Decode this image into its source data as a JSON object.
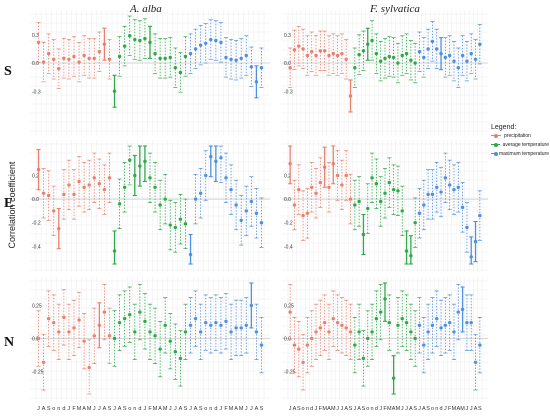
{
  "figure": {
    "col_titles": [
      "A. alba",
      "F. sylvatica"
    ],
    "row_labels": [
      "S",
      "E",
      "N"
    ],
    "ylabel": "Correlation coefficient",
    "legend": {
      "title": "Legend:",
      "items": [
        {
          "label": "precipitation",
          "color": "#E8806F"
        },
        {
          "label": "average temperature",
          "color": "#2EA84A"
        },
        {
          "label": "maximum temperature",
          "color": "#4F8FE0"
        }
      ]
    }
  },
  "chart_data": {
    "type": "scatter",
    "style": "dot-and-whisker",
    "months": [
      "J",
      "A",
      "S",
      "o",
      "n",
      "d",
      "J",
      "F",
      "M",
      "A",
      "M",
      "J",
      "J",
      "A",
      "S"
    ],
    "groups": [
      {
        "key": "precip",
        "name": "precipitation",
        "color": "#E8806F"
      },
      {
        "key": "avgT",
        "name": "average temperature",
        "color": "#2EA84A"
      },
      {
        "key": "maxT",
        "name": "maximum temperature",
        "color": "#4F8FE0"
      }
    ],
    "panels": [
      {
        "row": "S",
        "species": "A. alba",
        "yticks": [
          0.3,
          0.0,
          -0.3
        ],
        "ylim": [
          -0.68,
          0.5
        ],
        "precip": [
          0.22,
          0.01,
          0.1,
          0.04,
          -0.06,
          0.05,
          0.04,
          0.07,
          0.01,
          0.08,
          0.05,
          0.05,
          0.12,
          0.2,
          0.04
        ],
        "avgT": [
          -0.3,
          0.07,
          0.18,
          0.29,
          0.25,
          0.24,
          0.26,
          0.22,
          0.1,
          0.05,
          0.05,
          0.06,
          -0.05,
          -0.1,
          0.07
        ],
        "maxT": [
          0.1,
          0.15,
          0.19,
          0.21,
          0.25,
          0.24,
          0.22,
          0.06,
          0.04,
          0.03,
          0.05,
          0.08,
          -0.04,
          -0.2,
          -0.05
        ],
        "sig": {
          "precip": [
            13
          ],
          "avgT": [
            0,
            7
          ],
          "maxT": [
            13
          ]
        }
      },
      {
        "row": "S",
        "species": "F. sylvatica",
        "yticks": [
          0.3,
          0.0,
          -0.3
        ],
        "ylim": [
          -0.68,
          0.5
        ],
        "precip": [
          -0.05,
          0.14,
          0.18,
          0.15,
          0.08,
          0.12,
          0.08,
          0.13,
          0.13,
          0.08,
          0.1,
          0.08,
          0.1,
          0.04,
          -0.35
        ],
        "avgT": [
          -0.05,
          0.09,
          0.13,
          0.2,
          0.24,
          0.1,
          0.02,
          0.05,
          0.07,
          0.06,
          0.0,
          0.08,
          0.1,
          0.03,
          0.0
        ],
        "maxT": [
          0.12,
          0.06,
          0.15,
          0.23,
          0.15,
          0.1,
          0.06,
          0.08,
          0.02,
          -0.05,
          0.08,
          0.02,
          0.1,
          0.04,
          0.2
        ],
        "sig": {
          "precip": [
            14
          ],
          "avgT": [
            3
          ],
          "maxT": [
            5
          ]
        }
      },
      {
        "row": "E",
        "species": "A. alba",
        "yticks": [
          0.2,
          0.0,
          -0.2,
          -0.4
        ],
        "ylim": [
          -0.55,
          0.45
        ],
        "precip": [
          0.25,
          0.05,
          0.03,
          -0.1,
          -0.25,
          0.04,
          0.12,
          0.04,
          0.15,
          0.1,
          0.12,
          0.18,
          0.13,
          0.08,
          0.18
        ],
        "avgT": [
          -0.44,
          -0.04,
          0.1,
          0.33,
          0.2,
          0.28,
          0.32,
          0.18,
          0.1,
          -0.05,
          0.0,
          -0.22,
          -0.24,
          -0.17,
          -0.21
        ],
        "maxT": [
          -0.47,
          0.0,
          0.05,
          0.2,
          0.36,
          0.32,
          0.35,
          0.18,
          0.08,
          -0.05,
          -0.18,
          -0.1,
          -0.02,
          -0.12,
          -0.2
        ],
        "sig": {
          "precip": [
            0,
            4
          ],
          "avgT": [
            0,
            4,
            5,
            6
          ],
          "maxT": [
            0,
            4,
            5
          ]
        }
      },
      {
        "row": "E",
        "species": "F. sylvatica",
        "yticks": [
          0.2,
          0.0,
          -0.2,
          -0.4
        ],
        "ylim": [
          -0.55,
          0.45
        ],
        "precip": [
          0.3,
          -0.05,
          0.08,
          -0.14,
          -0.12,
          0.1,
          0.05,
          0.14,
          0.27,
          0.1,
          0.3,
          0.2,
          0.12,
          0.2,
          0.0
        ],
        "avgT": [
          -0.05,
          -0.02,
          -0.3,
          -0.08,
          0.18,
          0.13,
          -0.02,
          0.05,
          0.14,
          0.08,
          0.07,
          -0.1,
          -0.44,
          -0.48,
          -0.2
        ],
        "maxT": [
          -0.12,
          -0.05,
          0.04,
          0.04,
          0.1,
          0.06,
          0.18,
          0.12,
          0.08,
          0.1,
          -0.07,
          -0.24,
          -0.49,
          -0.36,
          -0.14
        ],
        "sig": {
          "precip": [
            0,
            8,
            10
          ],
          "avgT": [
            2,
            12,
            13
          ],
          "maxT": [
            12,
            13
          ]
        }
      },
      {
        "row": "N",
        "species": "A. alba",
        "yticks": [
          0.25,
          0.0,
          -0.25
        ],
        "ylim": [
          -0.42,
          0.42
        ],
        "precip": [
          0.0,
          -0.18,
          0.15,
          0.12,
          0.05,
          0.16,
          0.05,
          0.08,
          0.14,
          -0.02,
          -0.22,
          0.02,
          0.1,
          0.2,
          0.02
        ],
        "avgT": [
          0.0,
          0.12,
          0.15,
          0.18,
          0.05,
          0.2,
          0.13,
          0.05,
          0.02,
          -0.08,
          0.1,
          -0.02,
          -0.1,
          -0.15,
          0.05
        ],
        "maxT": [
          0.1,
          0.15,
          0.05,
          0.12,
          0.1,
          0.12,
          0.1,
          0.13,
          0.05,
          0.08,
          0.08,
          0.1,
          0.25,
          0.05,
          -0.05
        ],
        "sig": {
          "precip": [
            12
          ],
          "avgT": [],
          "maxT": [
            12
          ]
        }
      },
      {
        "row": "N",
        "species": "F. sylvatica",
        "yticks": [
          0.25,
          0.0,
          -0.25
        ],
        "ylim": [
          -0.42,
          0.42
        ],
        "precip": [
          0.2,
          -0.05,
          -0.08,
          -0.18,
          -0.05,
          0.0,
          0.05,
          0.08,
          0.12,
          0.05,
          0.15,
          0.12,
          0.1,
          0.08,
          0.05
        ],
        "avgT": [
          -0.05,
          0.05,
          -0.15,
          0.0,
          0.05,
          0.15,
          0.2,
          0.3,
          0.12,
          -0.3,
          0.1,
          0.15,
          0.12,
          0.05,
          0.0
        ],
        "maxT": [
          0.1,
          -0.05,
          0.05,
          0.1,
          0.15,
          0.08,
          0.1,
          0.12,
          0.05,
          0.2,
          0.22,
          0.12,
          0.12,
          -0.18,
          -0.05
        ],
        "sig": {
          "precip": [],
          "avgT": [
            7,
            9
          ],
          "maxT": [
            10
          ]
        }
      }
    ]
  }
}
